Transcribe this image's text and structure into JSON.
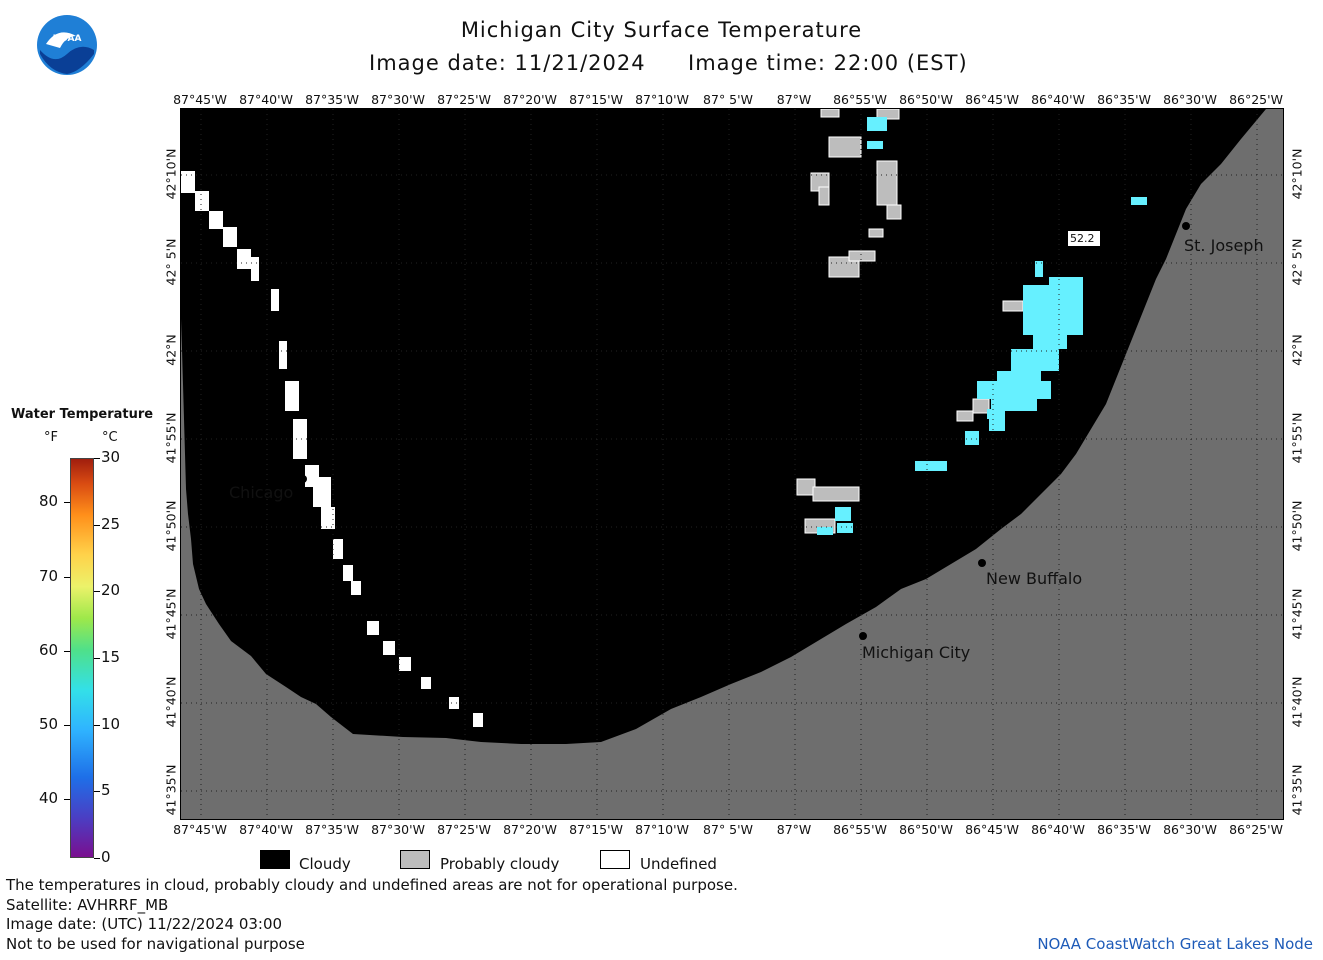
{
  "header": {
    "title": "Michigan City Surface Temperature",
    "date_label": "Image date: 11/21/2024",
    "time_label": "Image time: 22:00 (EST)"
  },
  "logo": {
    "text": "NOAA"
  },
  "axes": {
    "longitude_ticks": [
      "87°45'W",
      "87°40'W",
      "87°35'W",
      "87°30'W",
      "87°25'W",
      "87°20'W",
      "87°15'W",
      "87°10'W",
      "87° 5'W",
      "87°W",
      "86°55'W",
      "86°50'W",
      "86°45'W",
      "86°40'W",
      "86°35'W",
      "86°30'W",
      "86°25'W"
    ],
    "latitude_ticks": [
      "42°10'N",
      "42° 5'N",
      "42°N",
      "41°55'N",
      "41°50'N",
      "41°45'N",
      "41°40'N",
      "41°35'N"
    ]
  },
  "cities": [
    {
      "name": "Chicago"
    },
    {
      "name": "St. Joseph"
    },
    {
      "name": "New Buffalo"
    },
    {
      "name": "Michigan City"
    }
  ],
  "annotation": {
    "value": "52.2"
  },
  "colorbar": {
    "title": "Water Temperature",
    "unit_f": "°F",
    "unit_c": "°C",
    "f_ticks": [
      "80",
      "70",
      "60",
      "50",
      "40"
    ],
    "c_ticks": [
      "30",
      "25",
      "20",
      "15",
      "10",
      "5",
      "0"
    ],
    "range_c": [
      0,
      30
    ]
  },
  "legend": {
    "cloudy": "Cloudy",
    "probably_cloudy": "Probably cloudy",
    "undefined": "Undefined"
  },
  "footer": {
    "note1": "The temperatures in cloud, probably cloudy and undefined areas are not for operational purpose.",
    "satellite": "Satellite: AVHRRF_MB",
    "utc_date": "Image date: (UTC) 11/22/2024  03:00",
    "navigation": "Not to be used for navigational purpose",
    "credit": "NOAA CoastWatch Great Lakes Node"
  },
  "colors": {
    "cloudy": "#000000",
    "probably_cloudy": "#bdbdbd",
    "undefined": "#ffffff",
    "land": "#6e6e6e",
    "water_cyan": "#66f0ff",
    "credit": "#1e5bb8"
  }
}
